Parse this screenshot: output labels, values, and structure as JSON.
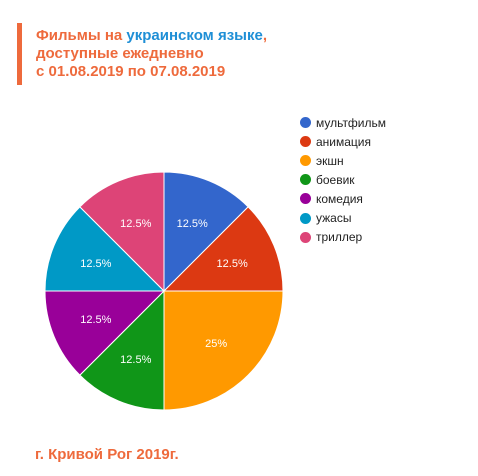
{
  "header": {
    "title_part1": "Фильмы на ",
    "title_part2": "украинском языке",
    "title_part3": ",",
    "title_line2": "доступные ежедневно",
    "title_line3": "с 01.08.2019 по 07.08.2019",
    "accent_color": "#ee6a3c",
    "highlight_color": "#1f8fd6"
  },
  "footer": {
    "text": "г. Кривой Рог 2019г."
  },
  "chart_data": {
    "type": "pie",
    "title": "Фильмы на украинском языке, доступные ежедневно с 01.08.2019 по 07.08.2019",
    "legend_position": "right",
    "slices": [
      {
        "label": "мультфильм",
        "value": 12.5,
        "display": "12.5%",
        "color": "#3366cc"
      },
      {
        "label": "анимация",
        "value": 12.5,
        "display": "12.5%",
        "color": "#dc3912"
      },
      {
        "label": "экшн",
        "value": 25,
        "display": "25%",
        "color": "#ff9900"
      },
      {
        "label": "боевик",
        "value": 12.5,
        "display": "12.5%",
        "color": "#109618"
      },
      {
        "label": "комедия",
        "value": 12.5,
        "display": "12.5%",
        "color": "#990099"
      },
      {
        "label": "ужасы",
        "value": 12.5,
        "display": "12.5%",
        "color": "#0099c6"
      },
      {
        "label": "триллер",
        "value": 12.5,
        "display": "12.5%",
        "color": "#dd4477"
      }
    ]
  }
}
